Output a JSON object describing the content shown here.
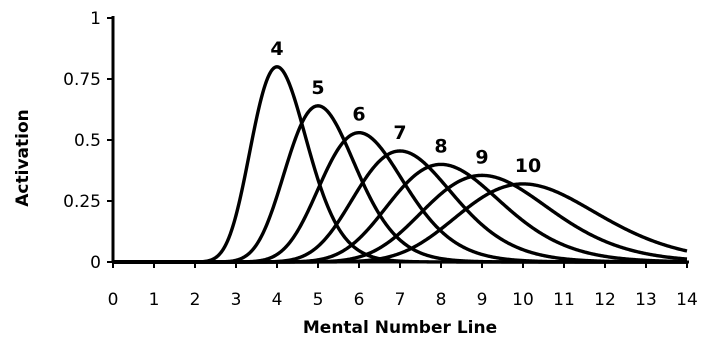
{
  "chart_data": {
    "type": "line",
    "title": "",
    "xlabel": "Mental Number Line",
    "ylabel": "Activation",
    "xlim": [
      0,
      14
    ],
    "ylim": [
      0,
      1
    ],
    "x_ticks": [
      "0",
      "1",
      "2",
      "3",
      "4",
      "5",
      "6",
      "7",
      "8",
      "9",
      "10",
      "11",
      "12",
      "13",
      "14"
    ],
    "y_ticks": [
      "0",
      "0.25",
      "0.5",
      "0.75",
      "1"
    ],
    "grid": false,
    "legend": "none",
    "line_color": "#000000",
    "series": [
      {
        "name": "4",
        "peak_x": 4,
        "peak_y": 0.8
      },
      {
        "name": "5",
        "peak_x": 5,
        "peak_y": 0.64
      },
      {
        "name": "6",
        "peak_x": 6,
        "peak_y": 0.53
      },
      {
        "name": "7",
        "peak_x": 7,
        "peak_y": 0.455
      },
      {
        "name": "8",
        "peak_x": 8,
        "peak_y": 0.4
      },
      {
        "name": "9",
        "peak_x": 9,
        "peak_y": 0.355
      },
      {
        "name": "10",
        "peak_x": 10,
        "peak_y": 0.32
      }
    ]
  }
}
